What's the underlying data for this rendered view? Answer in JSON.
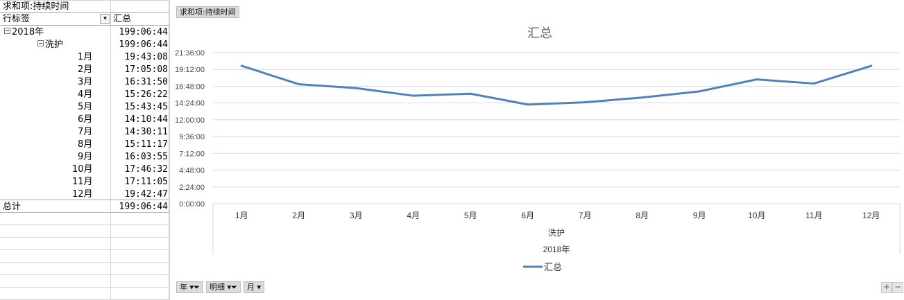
{
  "pivot": {
    "header_title": "求和项:持续时间",
    "row_label_header": "行标签",
    "value_header": "汇总",
    "rows": [
      {
        "label": "2018年",
        "value": "199:06:44"
      },
      {
        "label": "洗护",
        "value": "199:06:44"
      },
      {
        "label": "1月",
        "value": "19:43:08"
      },
      {
        "label": "2月",
        "value": "17:05:08"
      },
      {
        "label": "3月",
        "value": "16:31:50"
      },
      {
        "label": "4月",
        "value": "15:26:22"
      },
      {
        "label": "5月",
        "value": "15:43:45"
      },
      {
        "label": "6月",
        "value": "14:10:44"
      },
      {
        "label": "7月",
        "value": "14:30:11"
      },
      {
        "label": "8月",
        "value": "15:11:17"
      },
      {
        "label": "9月",
        "value": "16:03:55"
      },
      {
        "label": "10月",
        "value": "17:46:32"
      },
      {
        "label": "11月",
        "value": "17:11:05"
      },
      {
        "label": "12月",
        "value": "19:42:47"
      }
    ],
    "total_label": "总计",
    "total_value": "199:06:44"
  },
  "chart_panel": {
    "value_field_button": "求和项:持续时间",
    "axis_field_buttons": [
      "年",
      "明细",
      "月"
    ],
    "zoom_in": "+",
    "zoom_out": "−",
    "line_color": "#4f81bd"
  },
  "chart_data": {
    "type": "line",
    "title": "汇总",
    "categories": [
      "1月",
      "2月",
      "3月",
      "4月",
      "5月",
      "6月",
      "7月",
      "8月",
      "9月",
      "10月",
      "11月",
      "12月"
    ],
    "category_group_1": "洗护",
    "category_group_2": "2018年",
    "y_tick_labels": [
      "0:00:00",
      "2:24:00",
      "4:48:00",
      "7:12:00",
      "9:36:00",
      "12:00:00",
      "14:24:00",
      "16:48:00",
      "19:12:00",
      "21:36:00"
    ],
    "ylim_hours": [
      0,
      21.6
    ],
    "grid": true,
    "legend_position": "bottom",
    "series": [
      {
        "name": "汇总",
        "values": [
          "19:43:08",
          "17:05:08",
          "16:31:50",
          "15:26:22",
          "15:43:45",
          "14:10:44",
          "14:30:11",
          "15:11:17",
          "16:03:55",
          "17:46:32",
          "17:11:05",
          "19:42:47"
        ]
      }
    ]
  }
}
